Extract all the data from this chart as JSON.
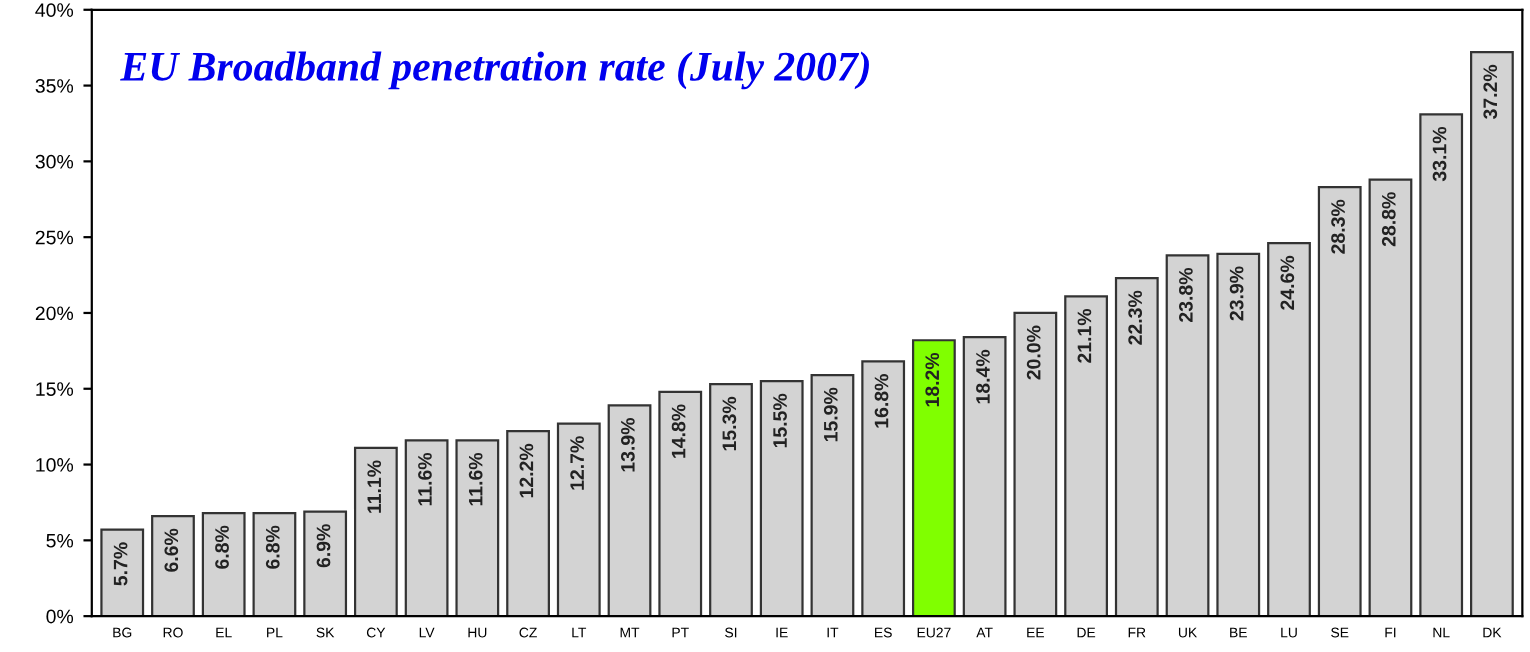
{
  "chart_data": {
    "type": "bar",
    "title": "EU Broadband penetration rate (July 2007)",
    "categories": [
      "BG",
      "RO",
      "EL",
      "PL",
      "SK",
      "CY",
      "LV",
      "HU",
      "CZ",
      "LT",
      "MT",
      "PT",
      "SI",
      "IE",
      "IT",
      "ES",
      "EU27",
      "AT",
      "EE",
      "DE",
      "FR",
      "UK",
      "BE",
      "LU",
      "SE",
      "FI",
      "NL",
      "DK"
    ],
    "values": [
      5.7,
      6.6,
      6.8,
      6.8,
      6.9,
      11.1,
      11.6,
      11.6,
      12.2,
      12.7,
      13.9,
      14.8,
      15.3,
      15.5,
      15.9,
      16.8,
      18.2,
      18.4,
      20.0,
      21.1,
      22.3,
      23.8,
      23.9,
      24.6,
      28.3,
      28.8,
      33.1,
      37.2
    ],
    "value_labels": [
      "5.7%",
      "6.6%",
      "6.8%",
      "6.8%",
      "6.9%",
      "11.1%",
      "11.6%",
      "11.6%",
      "12.2%",
      "12.7%",
      "13.9%",
      "14.8%",
      "15.3%",
      "15.5%",
      "15.9%",
      "16.8%",
      "18.2%",
      "18.4%",
      "20.0%",
      "21.1%",
      "22.3%",
      "23.8%",
      "23.9%",
      "24.6%",
      "28.3%",
      "28.8%",
      "33.1%",
      "37.2%"
    ],
    "colors": [
      "#d3d3d3",
      "#d3d3d3",
      "#d3d3d3",
      "#d3d3d3",
      "#d3d3d3",
      "#d3d3d3",
      "#d3d3d3",
      "#d3d3d3",
      "#d3d3d3",
      "#d3d3d3",
      "#d3d3d3",
      "#d3d3d3",
      "#d3d3d3",
      "#d3d3d3",
      "#d3d3d3",
      "#d3d3d3",
      "#80ff00",
      "#d3d3d3",
      "#d3d3d3",
      "#d3d3d3",
      "#d3d3d3",
      "#d3d3d3",
      "#d3d3d3",
      "#d3d3d3",
      "#d3d3d3",
      "#d3d3d3",
      "#d3d3d3",
      "#d3d3d3"
    ],
    "ylim": [
      0,
      40
    ],
    "yticks": [
      {
        "value": 0,
        "label": "0%"
      },
      {
        "value": 5,
        "label": "5%"
      },
      {
        "value": 10,
        "label": "10%"
      },
      {
        "value": 15,
        "label": "15%"
      },
      {
        "value": 20,
        "label": "20%"
      },
      {
        "value": 25,
        "label": "25%"
      },
      {
        "value": 30,
        "label": "30%"
      },
      {
        "value": 35,
        "label": "35%"
      },
      {
        "value": 40,
        "label": "40%"
      }
    ],
    "grid": false,
    "legend": false
  }
}
